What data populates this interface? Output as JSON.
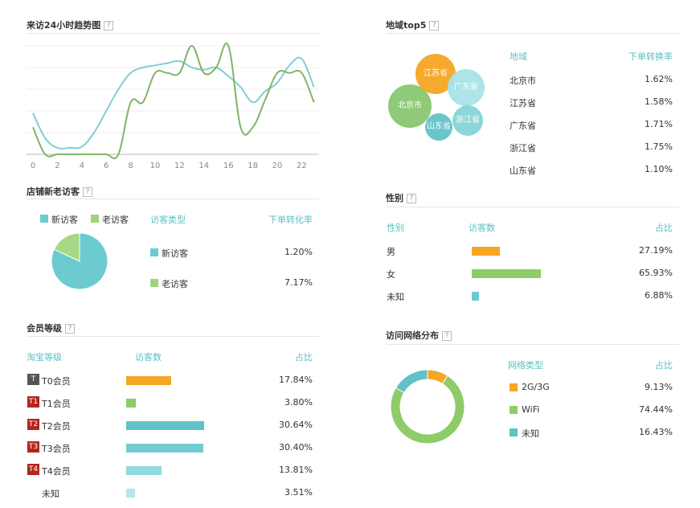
{
  "hourly": {
    "title": "来访24小时趋势图",
    "help": "?",
    "chart_data": {
      "type": "line",
      "x_ticks": [
        "0",
        "2",
        "4",
        "6",
        "8",
        "10",
        "12",
        "14",
        "16",
        "18",
        "20",
        "22"
      ],
      "x": [
        0,
        1,
        2,
        3,
        4,
        5,
        6,
        7,
        8,
        9,
        10,
        11,
        12,
        13,
        14,
        15,
        16,
        17,
        18,
        19,
        20,
        21,
        22,
        23
      ],
      "ylim": [
        0,
        100
      ],
      "series": [
        {
          "color": "#7fcfd4",
          "values": [
            38,
            15,
            6,
            6,
            7,
            20,
            40,
            60,
            75,
            80,
            82,
            84,
            86,
            80,
            78,
            80,
            72,
            62,
            48,
            58,
            66,
            82,
            88,
            62
          ]
        },
        {
          "color": "#82b366",
          "values": [
            25,
            0,
            0,
            0,
            0,
            0,
            0,
            0,
            48,
            48,
            75,
            75,
            75,
            100,
            75,
            80,
            100,
            25,
            25,
            50,
            75,
            75,
            75,
            48
          ]
        }
      ]
    }
  },
  "region": {
    "title": "地域top5",
    "help": "?",
    "headers": {
      "name": "地域",
      "rate": "下单转换率"
    },
    "rows": [
      {
        "name": "北京市",
        "rate": "1.62%"
      },
      {
        "name": "江苏省",
        "rate": "1.58%"
      },
      {
        "name": "广东省",
        "rate": "1.71%"
      },
      {
        "name": "浙江省",
        "rate": "1.75%"
      },
      {
        "name": "山东省",
        "rate": "1.10%"
      }
    ],
    "bubbles": [
      {
        "label": "北京市",
        "color": "#89c870"
      },
      {
        "label": "江苏省",
        "color": "#f5a623"
      },
      {
        "label": "广东省",
        "color": "#a8e3e6"
      },
      {
        "label": "浙江省",
        "color": "#86d4d9"
      },
      {
        "label": "山东省",
        "color": "#62c3c9"
      }
    ]
  },
  "visitors": {
    "title": "店铺新老访客",
    "help": "?",
    "legend": [
      "新访客",
      "老访客"
    ],
    "headers": {
      "type": "访客类型",
      "rate": "下单转化率"
    },
    "rows": [
      {
        "name": "新访客",
        "rate": "1.20%",
        "color": "#6ccbd1"
      },
      {
        "name": "老访客",
        "rate": "7.17%",
        "color": "#9fd47b"
      }
    ],
    "chart_data": {
      "type": "pie",
      "labels": [
        "新访客",
        "老访客"
      ],
      "values": [
        82,
        18
      ],
      "colors": [
        "#6ccbd1",
        "#a6d885"
      ]
    }
  },
  "gender": {
    "title": "性别",
    "help": "?",
    "headers": {
      "name": "性别",
      "count": "访客数",
      "share": "占比"
    },
    "rows": [
      {
        "name": "男",
        "share": "27.19%",
        "value": 27.19,
        "color": "#f5a623"
      },
      {
        "name": "女",
        "share": "65.93%",
        "value": 65.93,
        "color": "#8dcc68"
      },
      {
        "name": "未知",
        "share": "6.88%",
        "value": 6.88,
        "color": "#6ccbd1"
      }
    ]
  },
  "member": {
    "title": "会员等级",
    "help": "?",
    "headers": {
      "name": "淘宝等级",
      "count": "访客数",
      "share": "占比"
    },
    "rows": [
      {
        "badge": "T",
        "badge_color": "#555555",
        "name": "T0会员",
        "share": "17.84%",
        "value": 17.84,
        "color": "#f5a623"
      },
      {
        "badge": "T1",
        "badge_color": "#b3261e",
        "name": "T1会员",
        "share": "3.80%",
        "value": 3.8,
        "color": "#8dcc68"
      },
      {
        "badge": "T2",
        "badge_color": "#b3261e",
        "name": "T2会员",
        "share": "30.64%",
        "value": 30.64,
        "color": "#5fc2c7"
      },
      {
        "badge": "T3",
        "badge_color": "#b3261e",
        "name": "T3会员",
        "share": "30.40%",
        "value": 30.4,
        "color": "#72cbd0"
      },
      {
        "badge": "T4",
        "badge_color": "#b3261e",
        "name": "T4会员",
        "share": "13.81%",
        "value": 13.81,
        "color": "#92d9dd"
      },
      {
        "badge": "",
        "badge_color": "",
        "name": "未知",
        "share": "3.51%",
        "value": 3.51,
        "color": "#b5e6e8"
      }
    ]
  },
  "network": {
    "title": "访问网络分布",
    "help": "?",
    "headers": {
      "type": "网络类型",
      "share": "占比"
    },
    "rows": [
      {
        "name": "2G/3G",
        "share": "9.13%",
        "value": 9.13,
        "color": "#f5a623"
      },
      {
        "name": "WiFi",
        "share": "74.44%",
        "value": 74.44,
        "color": "#8dcc68"
      },
      {
        "name": "未知",
        "share": "16.43%",
        "value": 16.43,
        "color": "#5fc2c7"
      }
    ]
  }
}
